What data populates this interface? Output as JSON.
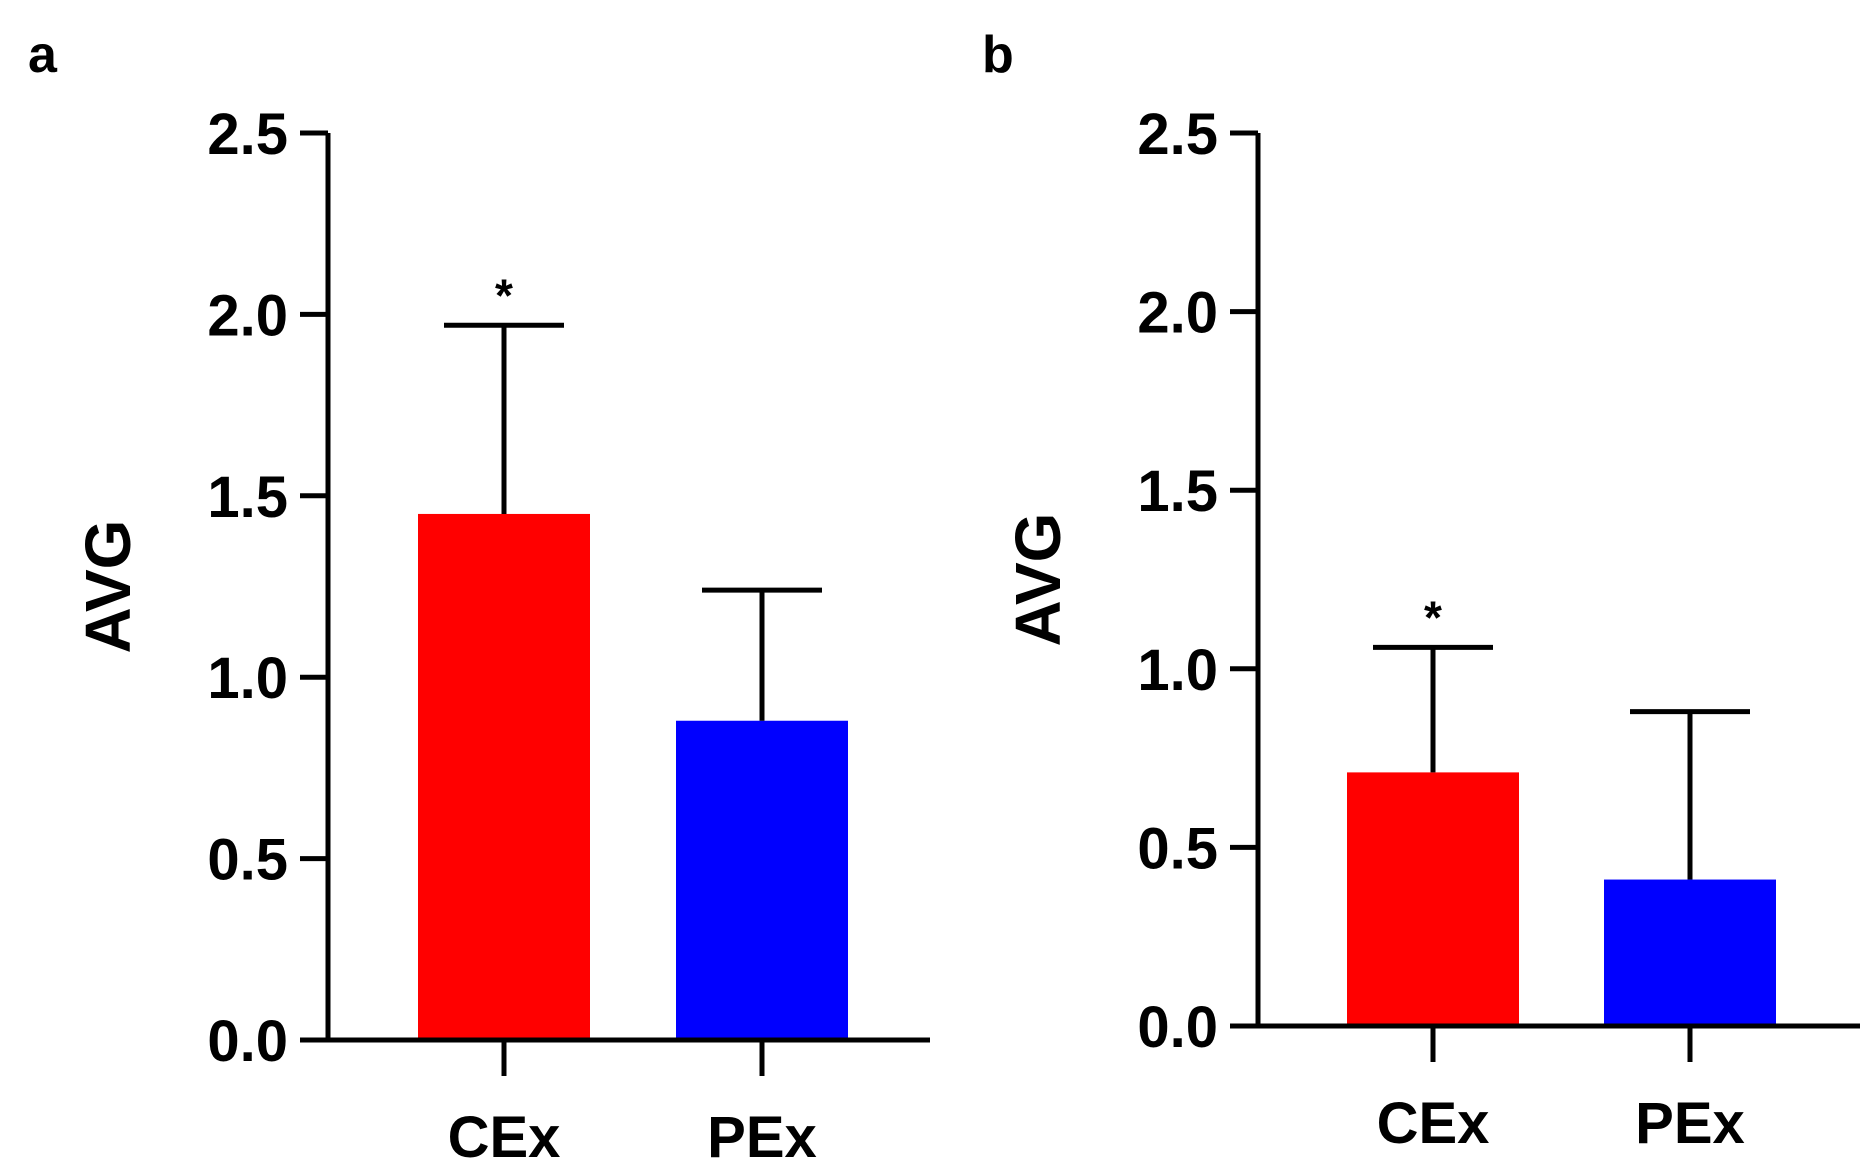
{
  "chart_data": [
    {
      "type": "bar",
      "panel_label": "a",
      "categories": [
        "CEx",
        "PEx"
      ],
      "values": [
        1.45,
        0.88
      ],
      "error_plus": [
        0.52,
        0.36
      ],
      "annotations": [
        "*",
        ""
      ],
      "colors": [
        "#ff0000",
        "#0000ff"
      ],
      "ylabel": "AVG",
      "ylim": [
        0,
        2.5
      ],
      "yticks": [
        "0.0",
        "0.5",
        "1.0",
        "1.5",
        "2.0",
        "2.5"
      ],
      "grid": false
    },
    {
      "type": "bar",
      "panel_label": "b",
      "categories": [
        "CEx",
        "PEx"
      ],
      "values": [
        0.71,
        0.41
      ],
      "error_plus": [
        0.35,
        0.47
      ],
      "annotations": [
        "*",
        ""
      ],
      "colors": [
        "#ff0000",
        "#0000ff"
      ],
      "ylabel": "AVG",
      "ylim": [
        0,
        2.5
      ],
      "yticks": [
        "0.0",
        "0.5",
        "1.0",
        "1.5",
        "2.0",
        "2.5"
      ],
      "grid": false
    }
  ]
}
